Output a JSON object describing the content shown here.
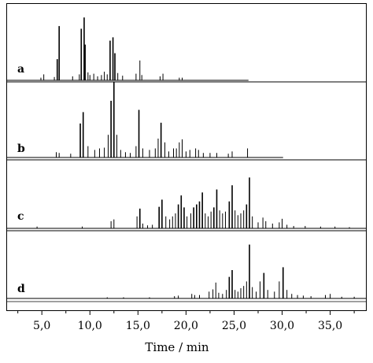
{
  "chart_data": {
    "type": "line",
    "title": "",
    "xlabel": "Time / min",
    "ylabel": "",
    "xlim": [
      1.3,
      38.8
    ],
    "x_ticks": [
      5,
      10,
      15,
      20,
      25,
      30,
      35
    ],
    "x_tick_labels": [
      "5,0",
      "10,0",
      "15,0",
      "20,0",
      "25,0",
      "30,0",
      "35,0"
    ],
    "grid": false,
    "legend": "none",
    "line_color": "#000000",
    "series": [
      {
        "name": "a",
        "trace_end": 26.5,
        "peaks": [
          [
            4.9,
            0.04
          ],
          [
            5.2,
            0.09
          ],
          [
            6.3,
            0.05
          ],
          [
            6.6,
            0.32
          ],
          [
            6.8,
            0.82
          ],
          [
            8.2,
            0.06
          ],
          [
            8.9,
            0.09
          ],
          [
            9.1,
            0.78
          ],
          [
            9.4,
            0.95
          ],
          [
            9.5,
            0.54
          ],
          [
            9.8,
            0.12
          ],
          [
            10.0,
            0.08
          ],
          [
            10.4,
            0.1
          ],
          [
            10.8,
            0.06
          ],
          [
            11.2,
            0.08
          ],
          [
            11.5,
            0.13
          ],
          [
            11.8,
            0.09
          ],
          [
            12.1,
            0.6
          ],
          [
            12.4,
            0.65
          ],
          [
            12.6,
            0.41
          ],
          [
            12.9,
            0.11
          ],
          [
            13.4,
            0.07
          ],
          [
            14.8,
            0.1
          ],
          [
            15.2,
            0.3
          ],
          [
            15.4,
            0.08
          ],
          [
            17.3,
            0.06
          ],
          [
            17.6,
            0.1
          ],
          [
            19.3,
            0.04
          ],
          [
            19.6,
            0.04
          ]
        ]
      },
      {
        "name": "b",
        "trace_end": 30.1,
        "peaks": [
          [
            6.5,
            0.07
          ],
          [
            6.8,
            0.06
          ],
          [
            8.0,
            0.05
          ],
          [
            9.0,
            0.45
          ],
          [
            9.3,
            0.6
          ],
          [
            9.8,
            0.15
          ],
          [
            10.5,
            0.1
          ],
          [
            11.0,
            0.12
          ],
          [
            11.5,
            0.13
          ],
          [
            11.9,
            0.3
          ],
          [
            12.2,
            0.75
          ],
          [
            12.5,
            1.0
          ],
          [
            12.8,
            0.3
          ],
          [
            13.2,
            0.1
          ],
          [
            13.7,
            0.07
          ],
          [
            14.2,
            0.06
          ],
          [
            14.8,
            0.15
          ],
          [
            15.1,
            0.63
          ],
          [
            15.5,
            0.12
          ],
          [
            16.2,
            0.1
          ],
          [
            16.8,
            0.12
          ],
          [
            17.1,
            0.25
          ],
          [
            17.4,
            0.46
          ],
          [
            17.8,
            0.2
          ],
          [
            18.2,
            0.08
          ],
          [
            18.7,
            0.12
          ],
          [
            19.0,
            0.12
          ],
          [
            19.3,
            0.2
          ],
          [
            19.6,
            0.24
          ],
          [
            20.0,
            0.08
          ],
          [
            20.4,
            0.1
          ],
          [
            21.0,
            0.12
          ],
          [
            21.3,
            0.1
          ],
          [
            21.8,
            0.06
          ],
          [
            22.5,
            0.06
          ],
          [
            23.2,
            0.06
          ],
          [
            24.4,
            0.05
          ],
          [
            24.8,
            0.08
          ],
          [
            26.4,
            0.12
          ]
        ]
      },
      {
        "name": "c",
        "trace_end": 38.8,
        "peaks": [
          [
            4.5,
            0.03
          ],
          [
            9.2,
            0.03
          ],
          [
            12.2,
            0.12
          ],
          [
            12.5,
            0.15
          ],
          [
            14.9,
            0.2
          ],
          [
            15.2,
            0.33
          ],
          [
            15.5,
            0.08
          ],
          [
            16.0,
            0.05
          ],
          [
            16.5,
            0.06
          ],
          [
            17.2,
            0.36
          ],
          [
            17.5,
            0.48
          ],
          [
            17.9,
            0.2
          ],
          [
            18.3,
            0.15
          ],
          [
            18.6,
            0.2
          ],
          [
            18.9,
            0.25
          ],
          [
            19.2,
            0.4
          ],
          [
            19.5,
            0.55
          ],
          [
            19.8,
            0.35
          ],
          [
            20.1,
            0.2
          ],
          [
            20.5,
            0.25
          ],
          [
            20.8,
            0.35
          ],
          [
            21.1,
            0.4
          ],
          [
            21.4,
            0.45
          ],
          [
            21.7,
            0.6
          ],
          [
            22.0,
            0.25
          ],
          [
            22.3,
            0.2
          ],
          [
            22.6,
            0.28
          ],
          [
            22.9,
            0.35
          ],
          [
            23.2,
            0.65
          ],
          [
            23.5,
            0.3
          ],
          [
            23.8,
            0.25
          ],
          [
            24.1,
            0.28
          ],
          [
            24.5,
            0.45
          ],
          [
            24.8,
            0.72
          ],
          [
            25.1,
            0.3
          ],
          [
            25.4,
            0.22
          ],
          [
            25.7,
            0.25
          ],
          [
            26.0,
            0.3
          ],
          [
            26.3,
            0.4
          ],
          [
            26.6,
            0.85
          ],
          [
            26.9,
            0.2
          ],
          [
            27.5,
            0.1
          ],
          [
            28.0,
            0.18
          ],
          [
            28.3,
            0.12
          ],
          [
            29.0,
            0.08
          ],
          [
            29.7,
            0.1
          ],
          [
            30.0,
            0.16
          ],
          [
            30.5,
            0.06
          ],
          [
            31.2,
            0.04
          ],
          [
            32.4,
            0.04
          ],
          [
            34.0,
            0.03
          ],
          [
            35.5,
            0.03
          ],
          [
            37.0,
            0.02
          ]
        ]
      },
      {
        "name": "d",
        "trace_end": 38.8,
        "peaks": [
          [
            11.8,
            0.02
          ],
          [
            13.5,
            0.02
          ],
          [
            16.2,
            0.02
          ],
          [
            18.8,
            0.04
          ],
          [
            19.2,
            0.05
          ],
          [
            20.6,
            0.08
          ],
          [
            20.9,
            0.06
          ],
          [
            21.4,
            0.06
          ],
          [
            22.4,
            0.12
          ],
          [
            22.8,
            0.16
          ],
          [
            23.1,
            0.28
          ],
          [
            23.4,
            0.1
          ],
          [
            23.8,
            0.08
          ],
          [
            24.2,
            0.15
          ],
          [
            24.5,
            0.38
          ],
          [
            24.8,
            0.5
          ],
          [
            25.1,
            0.15
          ],
          [
            25.4,
            0.12
          ],
          [
            25.7,
            0.18
          ],
          [
            26.0,
            0.22
          ],
          [
            26.3,
            0.3
          ],
          [
            26.6,
            0.95
          ],
          [
            26.9,
            0.2
          ],
          [
            27.3,
            0.12
          ],
          [
            27.7,
            0.3
          ],
          [
            28.1,
            0.45
          ],
          [
            28.5,
            0.15
          ],
          [
            29.2,
            0.12
          ],
          [
            29.7,
            0.3
          ],
          [
            30.1,
            0.55
          ],
          [
            30.5,
            0.15
          ],
          [
            31.0,
            0.08
          ],
          [
            31.6,
            0.06
          ],
          [
            32.2,
            0.05
          ],
          [
            33.0,
            0.04
          ],
          [
            34.5,
            0.06
          ],
          [
            35.0,
            0.08
          ],
          [
            36.2,
            0.03
          ],
          [
            37.5,
            0.03
          ]
        ]
      }
    ]
  }
}
